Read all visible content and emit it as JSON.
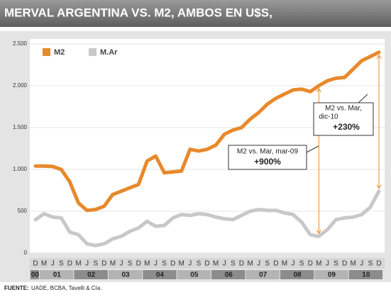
{
  "chart_data": {
    "type": "line",
    "title": "MERVAL ARGENTINA VS. M2, AMBOS EN U$S,",
    "categories": [
      "D",
      "M",
      "J",
      "S",
      "D",
      "M",
      "J",
      "S",
      "D",
      "M",
      "J",
      "S",
      "D",
      "M",
      "J",
      "S",
      "D",
      "M",
      "J",
      "S",
      "D",
      "M",
      "J",
      "S",
      "D",
      "M",
      "J",
      "S",
      "D",
      "M",
      "J",
      "S",
      "D",
      "M",
      "J",
      "S",
      "D",
      "M",
      "J",
      "S",
      "D"
    ],
    "years": [
      "00",
      "01",
      "02",
      "03",
      "04",
      "05",
      "06",
      "07",
      "08",
      "09",
      "10"
    ],
    "series": [
      {
        "name": "M2",
        "color": "#e8892b",
        "values": [
          1040,
          1040,
          1035,
          1000,
          850,
          600,
          510,
          520,
          560,
          700,
          740,
          780,
          820,
          1100,
          1160,
          960,
          970,
          980,
          1240,
          1220,
          1240,
          1290,
          1420,
          1470,
          1500,
          1600,
          1680,
          1780,
          1850,
          1900,
          1950,
          1960,
          1930,
          2000,
          2060,
          2090,
          2100,
          2200,
          2300,
          2350,
          2400
        ]
      },
      {
        "name": "M.Ar",
        "color": "#c8c8c8",
        "values": [
          400,
          470,
          430,
          420,
          250,
          220,
          110,
          90,
          110,
          170,
          200,
          260,
          300,
          380,
          320,
          330,
          420,
          460,
          450,
          470,
          460,
          430,
          410,
          400,
          450,
          500,
          520,
          510,
          510,
          480,
          460,
          370,
          220,
          200,
          280,
          400,
          420,
          430,
          460,
          550,
          740
        ]
      }
    ],
    "ylim": [
      0,
      2500
    ],
    "yticks": [
      0,
      {
        "value": 500,
        "label": "500"
      },
      {
        "value": 1000,
        "label": "1.000"
      },
      {
        "value": 1500,
        "label": "1.500"
      },
      {
        "value": 2000,
        "label": "2.000"
      },
      {
        "value": 2500,
        "label": "2.500"
      }
    ],
    "annotations": [
      {
        "line1": "M2 vs. Mar, mar-09",
        "line2": "+900%"
      },
      {
        "line1": "M2 vs. Mar,",
        "line1b": "dic-10",
        "line2": "+230%"
      }
    ],
    "source_label": "FUENTE:",
    "source": "UADE, BCBA, Tavelli & Cía."
  }
}
